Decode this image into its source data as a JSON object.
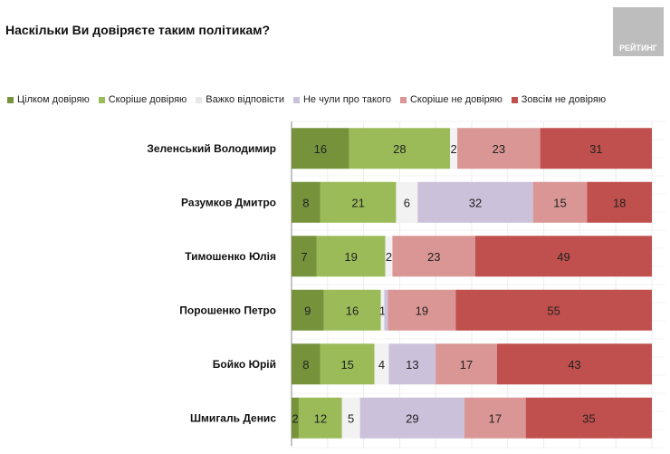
{
  "title": "Наскільки Ви довіряєте таким політикам?",
  "logo_text": "РЕЙТИНГ",
  "chart_data": {
    "type": "bar",
    "orientation": "horizontal",
    "stacked": true,
    "title": "Наскільки Ви довіряєте таким політикам?",
    "legend_position": "top",
    "grid": true,
    "categories": [
      "Зеленський Володимир",
      "Разумков Дмитро",
      "Тимошенко Юлія",
      "Порошенко Петро",
      "Бойко Юрій",
      "Шмигаль Денис"
    ],
    "series": [
      {
        "name": "Цілком довіряю",
        "color": "#76933c",
        "values": [
          16,
          8,
          7,
          9,
          8,
          2
        ]
      },
      {
        "name": "Скоріше довіряю",
        "color": "#9bbb59",
        "values": [
          28,
          21,
          19,
          16,
          15,
          12
        ]
      },
      {
        "name": "Важко відповісти",
        "color": "#f2f2f2",
        "values": [
          2,
          6,
          2,
          1,
          4,
          5
        ]
      },
      {
        "name": "Не чули про такого",
        "color": "#ccc1da",
        "values": [
          0,
          32,
          0,
          1,
          13,
          29
        ]
      },
      {
        "name": "Скоріше не довіряю",
        "color": "#da9694",
        "values": [
          23,
          15,
          23,
          19,
          17,
          17
        ]
      },
      {
        "name": "Зовсім не довіряю",
        "color": "#c0504d",
        "values": [
          31,
          18,
          49,
          55,
          43,
          35
        ]
      }
    ]
  }
}
